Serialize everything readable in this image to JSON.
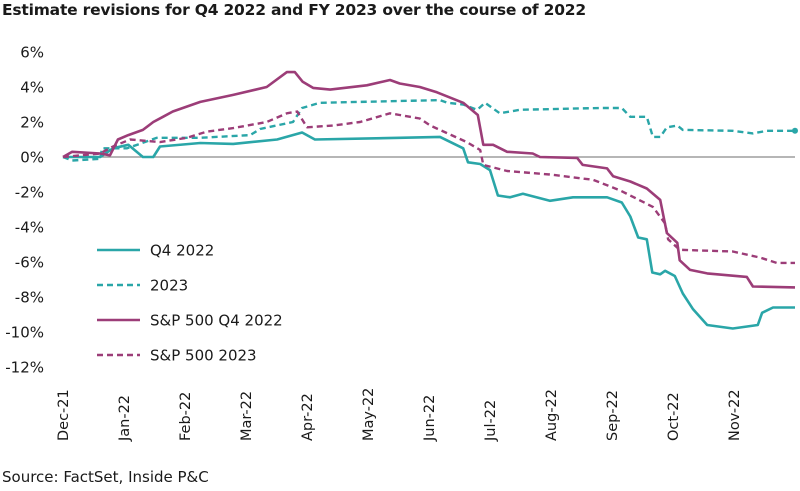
{
  "chart_data": {
    "type": "line",
    "title": "Estimate revisions for Q4 2022 and FY 2023 over the course of 2022",
    "source": "Source: FactSet, Inside P&C",
    "xlabel": "",
    "ylabel": "",
    "x_unit": "months since Dec-21",
    "x_ticks": [
      "Dec-21",
      "Jan-22",
      "Feb-22",
      "Mar-22",
      "Apr-22",
      "May-22",
      "Jun-22",
      "Jul-22",
      "Aug-22",
      "Sep-22",
      "Oct-22",
      "Nov-22"
    ],
    "xlim": [
      0,
      12
    ],
    "ylim": [
      -12,
      6
    ],
    "y_ticks": [
      6,
      4,
      2,
      0,
      -2,
      -4,
      -6,
      -8,
      -10,
      -12
    ],
    "y_tick_labels": [
      "6%",
      "4%",
      "2%",
      "0%",
      "-2%",
      "-4%",
      "-6%",
      "-8%",
      "-10%",
      "-12%"
    ],
    "grid": false,
    "legend_position": "bottom-left",
    "series": [
      {
        "name": "Q4 2022",
        "color": "#2aa6a8",
        "dash": false,
        "x": [
          0,
          0.61,
          0.82,
          1.07,
          1.31,
          1.48,
          1.59,
          2.25,
          2.79,
          3.51,
          3.92,
          4.13,
          5.52,
          6.18,
          6.56,
          6.64,
          6.84,
          7.0,
          7.13,
          7.33,
          7.54,
          7.98,
          8.36,
          8.92,
          9.16,
          9.3,
          9.43,
          9.57,
          9.66,
          9.79,
          9.87,
          10.03,
          10.16,
          10.33,
          10.56,
          10.98,
          11.39,
          11.46,
          11.64,
          12
        ],
        "y": [
          0,
          0,
          0.5,
          0.7,
          0,
          0,
          0.6,
          0.8,
          0.75,
          1.0,
          1.4,
          1.0,
          1.1,
          1.15,
          0.5,
          -0.3,
          -0.4,
          -0.75,
          -2.2,
          -2.3,
          -2.1,
          -2.5,
          -2.3,
          -2.3,
          -2.6,
          -3.4,
          -4.6,
          -4.7,
          -6.6,
          -6.7,
          -6.5,
          -6.8,
          -7.8,
          -8.7,
          -9.6,
          -9.8,
          -9.6,
          -8.9,
          -8.6,
          -8.6
        ]
      },
      {
        "name": "2023",
        "color": "#2aa6a8",
        "dash": true,
        "x": [
          0,
          0.15,
          0.61,
          0.64,
          1.05,
          1.54,
          2.25,
          3.07,
          3.23,
          3.77,
          3.92,
          4.21,
          5.52,
          6.18,
          6.3,
          6.56,
          6.79,
          6.92,
          7.16,
          7.49,
          8.8,
          9.16,
          9.3,
          9.57,
          9.67,
          9.79,
          9.9,
          10.07,
          10.16,
          10.98,
          11.31,
          11.54,
          12
        ],
        "y": [
          0,
          -0.2,
          -0.1,
          0.5,
          0.5,
          1.1,
          1.1,
          1.25,
          1.6,
          2.0,
          2.8,
          3.1,
          3.2,
          3.25,
          3.1,
          3.0,
          2.7,
          3.1,
          2.5,
          2.7,
          2.8,
          2.8,
          2.3,
          2.3,
          1.15,
          1.15,
          1.7,
          1.8,
          1.55,
          1.5,
          1.35,
          1.5,
          1.5
        ]
      },
      {
        "name": "S&P 500 Q4 2022",
        "color": "#9c3d78",
        "dash": false,
        "x": [
          0,
          0.15,
          0.61,
          0.77,
          0.9,
          1.07,
          1.31,
          1.48,
          1.64,
          1.8,
          2.25,
          2.79,
          3.34,
          3.67,
          3.8,
          3.93,
          4.1,
          4.38,
          4.98,
          5.36,
          5.52,
          5.85,
          6.13,
          6.56,
          6.8,
          6.89,
          7.05,
          7.28,
          7.7,
          7.82,
          8.43,
          8.52,
          8.92,
          9.02,
          9.3,
          9.57,
          9.79,
          9.9,
          10.07,
          10.11,
          10.28,
          10.56,
          11.21,
          11.31,
          12
        ],
        "y": [
          0,
          0.3,
          0.2,
          0.1,
          1.0,
          1.25,
          1.55,
          2.0,
          2.3,
          2.6,
          3.15,
          3.55,
          4.0,
          4.85,
          4.85,
          4.3,
          3.95,
          3.85,
          4.1,
          4.4,
          4.2,
          4.0,
          3.7,
          3.1,
          2.4,
          0.7,
          0.7,
          0.3,
          0.2,
          0,
          -0.05,
          -0.45,
          -0.65,
          -1.1,
          -1.4,
          -1.8,
          -2.45,
          -4.35,
          -4.9,
          -5.9,
          -6.45,
          -6.65,
          -6.85,
          -7.4,
          -7.45
        ]
      },
      {
        "name": "S&P 500 2023",
        "color": "#9c3d78",
        "dash": true,
        "x": [
          0,
          0.61,
          0.82,
          1.1,
          1.59,
          2.03,
          2.36,
          2.79,
          3.34,
          3.67,
          3.84,
          4.0,
          4.43,
          4.87,
          5.36,
          5.52,
          5.85,
          6.02,
          6.62,
          6.84,
          6.89,
          7.28,
          7.98,
          8.69,
          9.13,
          9.67,
          9.87,
          9.92,
          10.11,
          10.98,
          11.43,
          11.7,
          12
        ],
        "y": [
          0,
          0.2,
          0.6,
          1.0,
          0.85,
          1.1,
          1.45,
          1.65,
          2.0,
          2.5,
          2.6,
          1.7,
          1.8,
          2.0,
          2.5,
          2.4,
          2.2,
          1.8,
          0.85,
          0.4,
          -0.45,
          -0.8,
          -1.0,
          -1.3,
          -1.9,
          -2.85,
          -3.8,
          -4.7,
          -5.3,
          -5.4,
          -5.75,
          -6.05,
          -6.05
        ]
      }
    ]
  }
}
